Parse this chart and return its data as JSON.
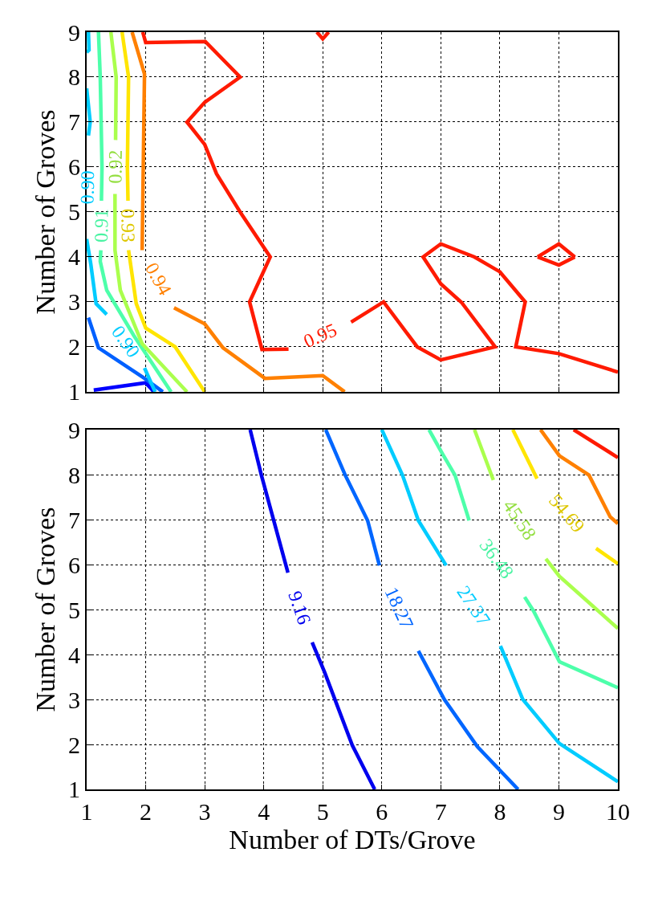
{
  "chart_data": [
    {
      "type": "line",
      "ylabel": "Number of Groves",
      "xlim": [
        1,
        10
      ],
      "ylim": [
        1,
        9
      ],
      "xticks": [
        1,
        2,
        3,
        4,
        5,
        6,
        7,
        8,
        9,
        10
      ],
      "yticks": [
        1,
        2,
        3,
        4,
        5,
        6,
        7,
        8,
        9
      ],
      "grid": true,
      "tick_labels": "y",
      "series": [
        {
          "color": "#0000ff",
          "x": [
            1.12,
            2.0,
            2.14
          ],
          "values": [
            1.04,
            1.2,
            1.0
          ]
        },
        {
          "color": "#0060ff",
          "x": [
            1.03,
            1.2,
            1.98,
            2.29
          ],
          "values": [
            2.65,
            1.98,
            1.3,
            1.0
          ]
        },
        {
          "color": "#00ccff",
          "x": [
            1.03,
            1.04,
            1.0
          ],
          "values": [
            9.0,
            8.6,
            8.55
          ]
        },
        {
          "name": "0.90",
          "color": "#00ccff",
          "x": [
            1.0,
            1.06,
            1.03,
            null,
            1.0,
            1.07,
            1.16,
            1.34,
            null,
            1.98,
            2.16
          ],
          "values": [
            7.75,
            7.0,
            6.7,
            null,
            4.4,
            3.84,
            2.96,
            2.72,
            null,
            1.53,
            1.0
          ]
        },
        {
          "name": "0.91",
          "color": "#4dffaa",
          "x": [
            1.2,
            1.23,
            1.26,
            1.25,
            null,
            1.24,
            1.23,
            1.34,
            1.8,
            2.43
          ],
          "values": [
            9.0,
            8.0,
            6.0,
            5.25,
            null,
            4.15,
            3.9,
            3.26,
            2.25,
            1.0
          ]
        },
        {
          "name": "0.92",
          "color": "#aaff4d",
          "x": [
            1.41,
            1.5,
            1.49,
            null,
            1.48,
            1.48,
            1.57,
            1.94,
            2.7
          ],
          "values": [
            9.0,
            8.0,
            6.6,
            null,
            5.4,
            4.15,
            3.26,
            2.07,
            1.0
          ]
        },
        {
          "name": "0.93",
          "color": "#ffe500",
          "x": [
            1.6,
            1.71,
            1.69,
            1.7,
            null,
            1.71,
            1.84,
            2.0,
            2.5,
            3.0
          ],
          "values": [
            9.0,
            8.0,
            6.0,
            5.25,
            null,
            4.15,
            2.96,
            2.42,
            2.0,
            1.0
          ]
        },
        {
          "name": "0.94",
          "color": "#ff8000",
          "x": [
            1.77,
            1.98,
            1.94,
            null,
            2.48,
            3.0,
            3.31,
            4.02,
            5.0,
            5.37
          ],
          "values": [
            9.0,
            8.07,
            4.15,
            null,
            2.87,
            2.51,
            1.98,
            1.3,
            1.36,
            1.0
          ]
        },
        {
          "name": "0.95",
          "color": "#ff1a00",
          "x": [
            1.95,
            2.0,
            3.01,
            3.6,
            3.0,
            2.7,
            3.0,
            3.2,
            3.6,
            4.11,
            3.76,
            3.97,
            4.42,
            null,
            5.48,
            6.03,
            6.6,
            7.0,
            7.92,
            7.35,
            7.0,
            6.7,
            7.0,
            7.57,
            8.0,
            8.43,
            8.27,
            9.0,
            10.0
          ],
          "values": [
            9.0,
            8.77,
            8.79,
            8.0,
            7.44,
            7.0,
            6.5,
            5.85,
            5.0,
            4.0,
            3.0,
            1.94,
            1.95,
            null,
            2.55,
            3.0,
            2.0,
            1.71,
            2.0,
            2.99,
            3.4,
            4.0,
            4.29,
            4.0,
            3.67,
            3.0,
            2.0,
            1.85,
            1.44
          ]
        },
        {
          "color": "#ff1a00",
          "x": [
            8.64,
            9.0,
            9.27
          ],
          "values": [
            4.0,
            4.29,
            4.0
          ]
        },
        {
          "color": "#ff1a00",
          "x": [
            8.64,
            9.0,
            9.27
          ],
          "values": [
            4.0,
            3.82,
            4.0
          ]
        },
        {
          "color": "#ff1a00",
          "x": [
            4.9,
            5.0,
            5.1
          ],
          "values": [
            9.0,
            8.85,
            9.0
          ]
        }
      ]
    },
    {
      "type": "line",
      "xlabel": "Number of DTs/Grove",
      "ylabel": "Number of Groves",
      "xlim": [
        1,
        10
      ],
      "ylim": [
        1,
        9
      ],
      "xticks": [
        1,
        2,
        3,
        4,
        5,
        6,
        7,
        8,
        9,
        10
      ],
      "yticks": [
        1,
        2,
        3,
        4,
        5,
        6,
        7,
        8,
        9
      ],
      "grid": true,
      "series": [
        {
          "name": "9.16",
          "color": "#0000ee",
          "x": [
            3.77,
            3.96,
            4.41,
            null,
            4.82,
            5.03,
            5.5,
            5.88
          ],
          "values": [
            9.0,
            7.99,
            5.82,
            null,
            4.27,
            3.61,
            1.98,
            1.0
          ]
        },
        {
          "name": "18.27",
          "color": "#0066ff",
          "x": [
            5.05,
            5.38,
            5.76,
            5.96,
            null,
            6.62,
            7.06,
            7.62,
            8.31
          ],
          "values": [
            9.0,
            7.99,
            6.98,
            5.98,
            null,
            4.08,
            3.0,
            1.95,
            1.0
          ]
        },
        {
          "name": "27.37",
          "color": "#00ccff",
          "x": [
            6.0,
            6.35,
            6.62,
            7.09,
            null,
            8.01,
            8.39,
            9.01,
            10.0
          ],
          "values": [
            9.0,
            7.99,
            6.98,
            5.98,
            null,
            4.19,
            3.0,
            2.02,
            1.17
          ]
        },
        {
          "name": "36.48",
          "color": "#4dffaa",
          "x": [
            6.8,
            7.03,
            7.24,
            7.48,
            null,
            8.42,
            8.57,
            9.01,
            10.0
          ],
          "values": [
            9.0,
            8.46,
            7.99,
            6.98,
            null,
            5.28,
            4.97,
            3.84,
            3.26
          ]
        },
        {
          "name": "45.58",
          "color": "#aaff4d",
          "x": [
            7.57,
            7.89,
            null,
            8.78,
            9.01,
            10.0
          ],
          "values": [
            9.0,
            7.88,
            null,
            6.13,
            5.74,
            4.58
          ]
        },
        {
          "name": "54.69",
          "color": "#ffe500",
          "x": [
            8.22,
            8.63,
            null,
            9.63,
            10.0
          ],
          "values": [
            9.0,
            7.91,
            null,
            6.36,
            6.02
          ]
        },
        {
          "color": "#ff8000",
          "x": [
            8.69,
            9.01,
            9.51,
            9.87,
            10.0
          ],
          "values": [
            9.0,
            8.42,
            7.99,
            7.06,
            6.91
          ]
        },
        {
          "color": "#ff1a00",
          "x": [
            9.25,
            10.0
          ],
          "values": [
            9.0,
            8.38
          ]
        }
      ]
    }
  ]
}
